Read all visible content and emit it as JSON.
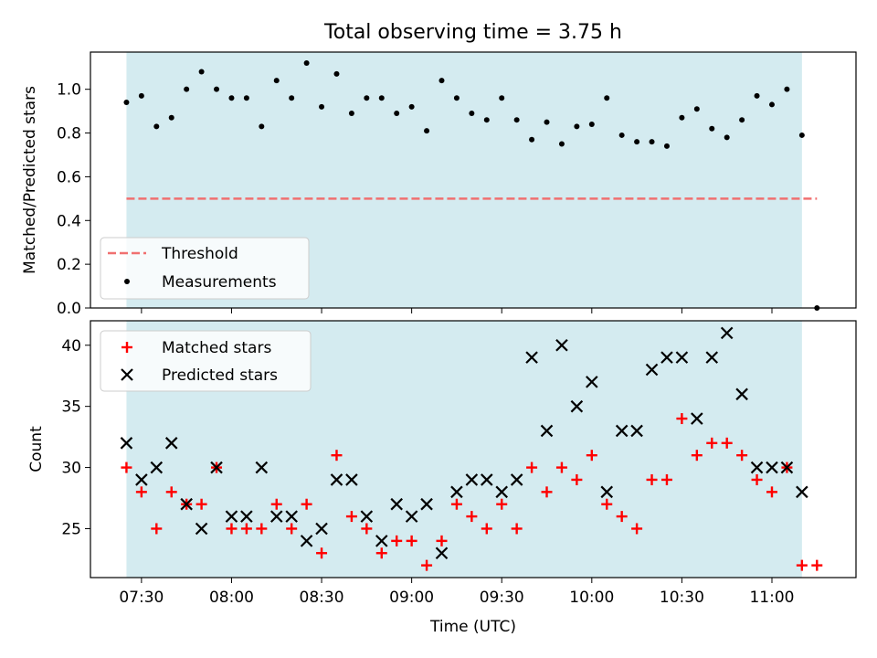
{
  "title": "Total observing time = 3.75 h",
  "chart_data": [
    {
      "type": "scatter",
      "ylabel": "Matched/Predicted stars",
      "ylim": [
        0,
        1.17
      ],
      "yticks": [
        0.0,
        0.2,
        0.4,
        0.6,
        0.8,
        1.0
      ],
      "ytick_labels": [
        "0.0",
        "0.2",
        "0.4",
        "0.6",
        "0.8",
        "1.0"
      ],
      "legend_placement": "lower-left",
      "threshold": {
        "name": "Threshold",
        "value": 0.5,
        "x_start": "07:25",
        "x_end": "11:15",
        "color": "#f07070",
        "style": "dashed"
      },
      "shaded_span": {
        "x_start": "07:25",
        "x_end": "11:10",
        "color": "#d4ebf0"
      },
      "series": [
        {
          "name": "Measurements",
          "marker": "dot",
          "color": "#000000",
          "x": [
            "07:25",
            "07:30",
            "07:35",
            "07:40",
            "07:45",
            "07:50",
            "07:55",
            "08:00",
            "08:05",
            "08:10",
            "08:15",
            "08:20",
            "08:25",
            "08:30",
            "08:35",
            "08:40",
            "08:45",
            "08:50",
            "08:55",
            "09:00",
            "09:05",
            "09:10",
            "09:15",
            "09:20",
            "09:25",
            "09:30",
            "09:35",
            "09:40",
            "09:45",
            "09:50",
            "09:55",
            "10:00",
            "10:05",
            "10:10",
            "10:15",
            "10:20",
            "10:25",
            "10:30",
            "10:35",
            "10:40",
            "10:45",
            "10:50",
            "10:55",
            "11:00",
            "11:05",
            "11:10",
            "11:15"
          ],
          "y": [
            0.94,
            0.97,
            0.83,
            0.87,
            1.0,
            1.08,
            1.0,
            0.96,
            0.96,
            0.83,
            1.04,
            0.96,
            1.12,
            0.92,
            1.07,
            0.89,
            0.96,
            0.96,
            0.89,
            0.92,
            0.81,
            1.04,
            0.96,
            0.89,
            0.86,
            0.96,
            0.86,
            0.77,
            0.85,
            0.75,
            0.83,
            0.84,
            0.96,
            0.79,
            0.76,
            0.76,
            0.74,
            0.87,
            0.91,
            0.82,
            0.78,
            0.86,
            0.97,
            0.93,
            1.0,
            0.79,
            0.0
          ]
        }
      ]
    },
    {
      "type": "scatter",
      "xlabel": "Time (UTC)",
      "ylabel": "Count",
      "ylim": [
        21,
        42
      ],
      "yticks": [
        25,
        30,
        35,
        40
      ],
      "ytick_labels": [
        "25",
        "30",
        "35",
        "40"
      ],
      "xtick_labels": [
        "07:30",
        "08:00",
        "08:30",
        "09:00",
        "09:30",
        "10:00",
        "10:30",
        "11:00"
      ],
      "xlim": [
        "07:13",
        "11:28"
      ],
      "legend_placement": "upper-left",
      "shaded_span": {
        "x_start": "07:25",
        "x_end": "11:10",
        "color": "#d4ebf0"
      },
      "series": [
        {
          "name": "Matched stars",
          "marker": "plus",
          "color": "#ff0000",
          "x": [
            "07:25",
            "07:30",
            "07:35",
            "07:40",
            "07:45",
            "07:50",
            "07:55",
            "08:00",
            "08:05",
            "08:10",
            "08:15",
            "08:20",
            "08:25",
            "08:30",
            "08:35",
            "08:40",
            "08:45",
            "08:50",
            "08:55",
            "09:00",
            "09:05",
            "09:10",
            "09:15",
            "09:20",
            "09:25",
            "09:30",
            "09:35",
            "09:40",
            "09:45",
            "09:50",
            "09:55",
            "10:00",
            "10:05",
            "10:10",
            "10:15",
            "10:20",
            "10:25",
            "10:30",
            "10:35",
            "10:40",
            "10:45",
            "10:50",
            "10:55",
            "11:00",
            "11:05",
            "11:10",
            "11:15"
          ],
          "y": [
            30,
            28,
            25,
            28,
            27,
            27,
            30,
            25,
            25,
            25,
            27,
            25,
            27,
            23,
            31,
            26,
            25,
            23,
            24,
            24,
            22,
            24,
            27,
            26,
            25,
            27,
            25,
            30,
            28,
            30,
            29,
            31,
            27,
            26,
            25,
            29,
            29,
            34,
            31,
            32,
            32,
            31,
            29,
            28,
            30,
            22,
            22
          ]
        },
        {
          "name": "Predicted stars",
          "marker": "x",
          "color": "#000000",
          "x": [
            "07:25",
            "07:30",
            "07:35",
            "07:40",
            "07:45",
            "07:50",
            "07:55",
            "08:00",
            "08:05",
            "08:10",
            "08:15",
            "08:20",
            "08:25",
            "08:30",
            "08:35",
            "08:40",
            "08:45",
            "08:50",
            "08:55",
            "09:00",
            "09:05",
            "09:10",
            "09:15",
            "09:20",
            "09:25",
            "09:30",
            "09:35",
            "09:40",
            "09:45",
            "09:50",
            "09:55",
            "10:00",
            "10:05",
            "10:10",
            "10:15",
            "10:20",
            "10:25",
            "10:30",
            "10:35",
            "10:40",
            "10:45",
            "10:50",
            "10:55",
            "11:00",
            "11:05",
            "11:10"
          ],
          "y": [
            32,
            29,
            30,
            32,
            27,
            25,
            30,
            26,
            26,
            30,
            26,
            26,
            24,
            25,
            29,
            29,
            26,
            24,
            27,
            26,
            27,
            23,
            28,
            29,
            29,
            28,
            29,
            39,
            33,
            40,
            35,
            37,
            28,
            33,
            33,
            38,
            39,
            39,
            34,
            39,
            41,
            36,
            30,
            30,
            30,
            28
          ]
        }
      ]
    }
  ]
}
